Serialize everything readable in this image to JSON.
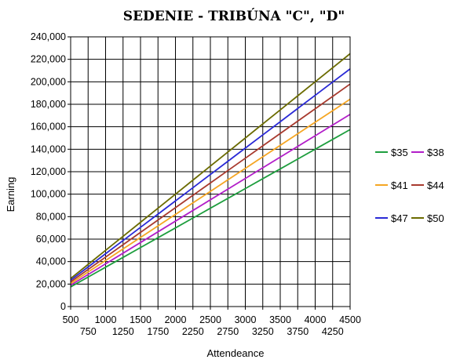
{
  "chart_data": {
    "type": "line",
    "title": "SEDENIE - TRIBÚNA \"C\", \"D\"",
    "xlabel": "Attendeance",
    "ylabel": "Earning",
    "x": [
      500,
      750,
      1000,
      1250,
      1500,
      1750,
      2000,
      2250,
      2500,
      2750,
      3000,
      3250,
      3500,
      3750,
      4000,
      4250,
      4500
    ],
    "xlim": [
      500,
      4500
    ],
    "ylim": [
      0,
      240000
    ],
    "x_ticks_top_row": [
      "500",
      "1000",
      "1500",
      "2000",
      "2500",
      "3000",
      "3500",
      "4000",
      "4500"
    ],
    "x_ticks_bottom_row": [
      "750",
      "1250",
      "1750",
      "2250",
      "2750",
      "3250",
      "3750",
      "4250"
    ],
    "y_ticks": [
      "0",
      "20,000",
      "40,000",
      "60,000",
      "80,000",
      "100,000",
      "120,000",
      "140,000",
      "160,000",
      "180,000",
      "200,000",
      "220,000",
      "240,000"
    ],
    "grid": true,
    "legend_position": "right",
    "series": [
      {
        "name": "$35",
        "price": 35,
        "color": "#1e9e3e",
        "values": [
          17500,
          26250,
          35000,
          43750,
          52500,
          61250,
          70000,
          78750,
          87500,
          96250,
          105000,
          113750,
          122500,
          131250,
          140000,
          148750,
          157500
        ]
      },
      {
        "name": "$38",
        "price": 38,
        "color": "#b21ec8",
        "values": [
          19000,
          28500,
          38000,
          47500,
          57000,
          66500,
          76000,
          85500,
          95000,
          104500,
          114000,
          123500,
          133000,
          142500,
          152000,
          161500,
          171000
        ]
      },
      {
        "name": "$41",
        "price": 41,
        "color": "#f5a623",
        "values": [
          20500,
          30750,
          41000,
          51250,
          61500,
          71750,
          82000,
          92250,
          102500,
          112750,
          123000,
          133250,
          143500,
          153750,
          164000,
          174250,
          184500
        ]
      },
      {
        "name": "$44",
        "price": 44,
        "color": "#a83a2e",
        "values": [
          22000,
          33000,
          44000,
          55000,
          66000,
          77000,
          88000,
          99000,
          110000,
          121000,
          132000,
          143000,
          154000,
          165000,
          176000,
          187000,
          198000
        ]
      },
      {
        "name": "$47",
        "price": 47,
        "color": "#2a2ad6",
        "values": [
          23500,
          35250,
          47000,
          58750,
          70500,
          82250,
          94000,
          105750,
          117500,
          129250,
          141000,
          152750,
          164500,
          176250,
          188000,
          199750,
          211500
        ]
      },
      {
        "name": "$50",
        "price": 50,
        "color": "#6b6b00",
        "values": [
          25000,
          37500,
          50000,
          62500,
          75000,
          87500,
          100000,
          112500,
          125000,
          137500,
          150000,
          162500,
          175000,
          187500,
          200000,
          212500,
          225000
        ]
      }
    ]
  }
}
